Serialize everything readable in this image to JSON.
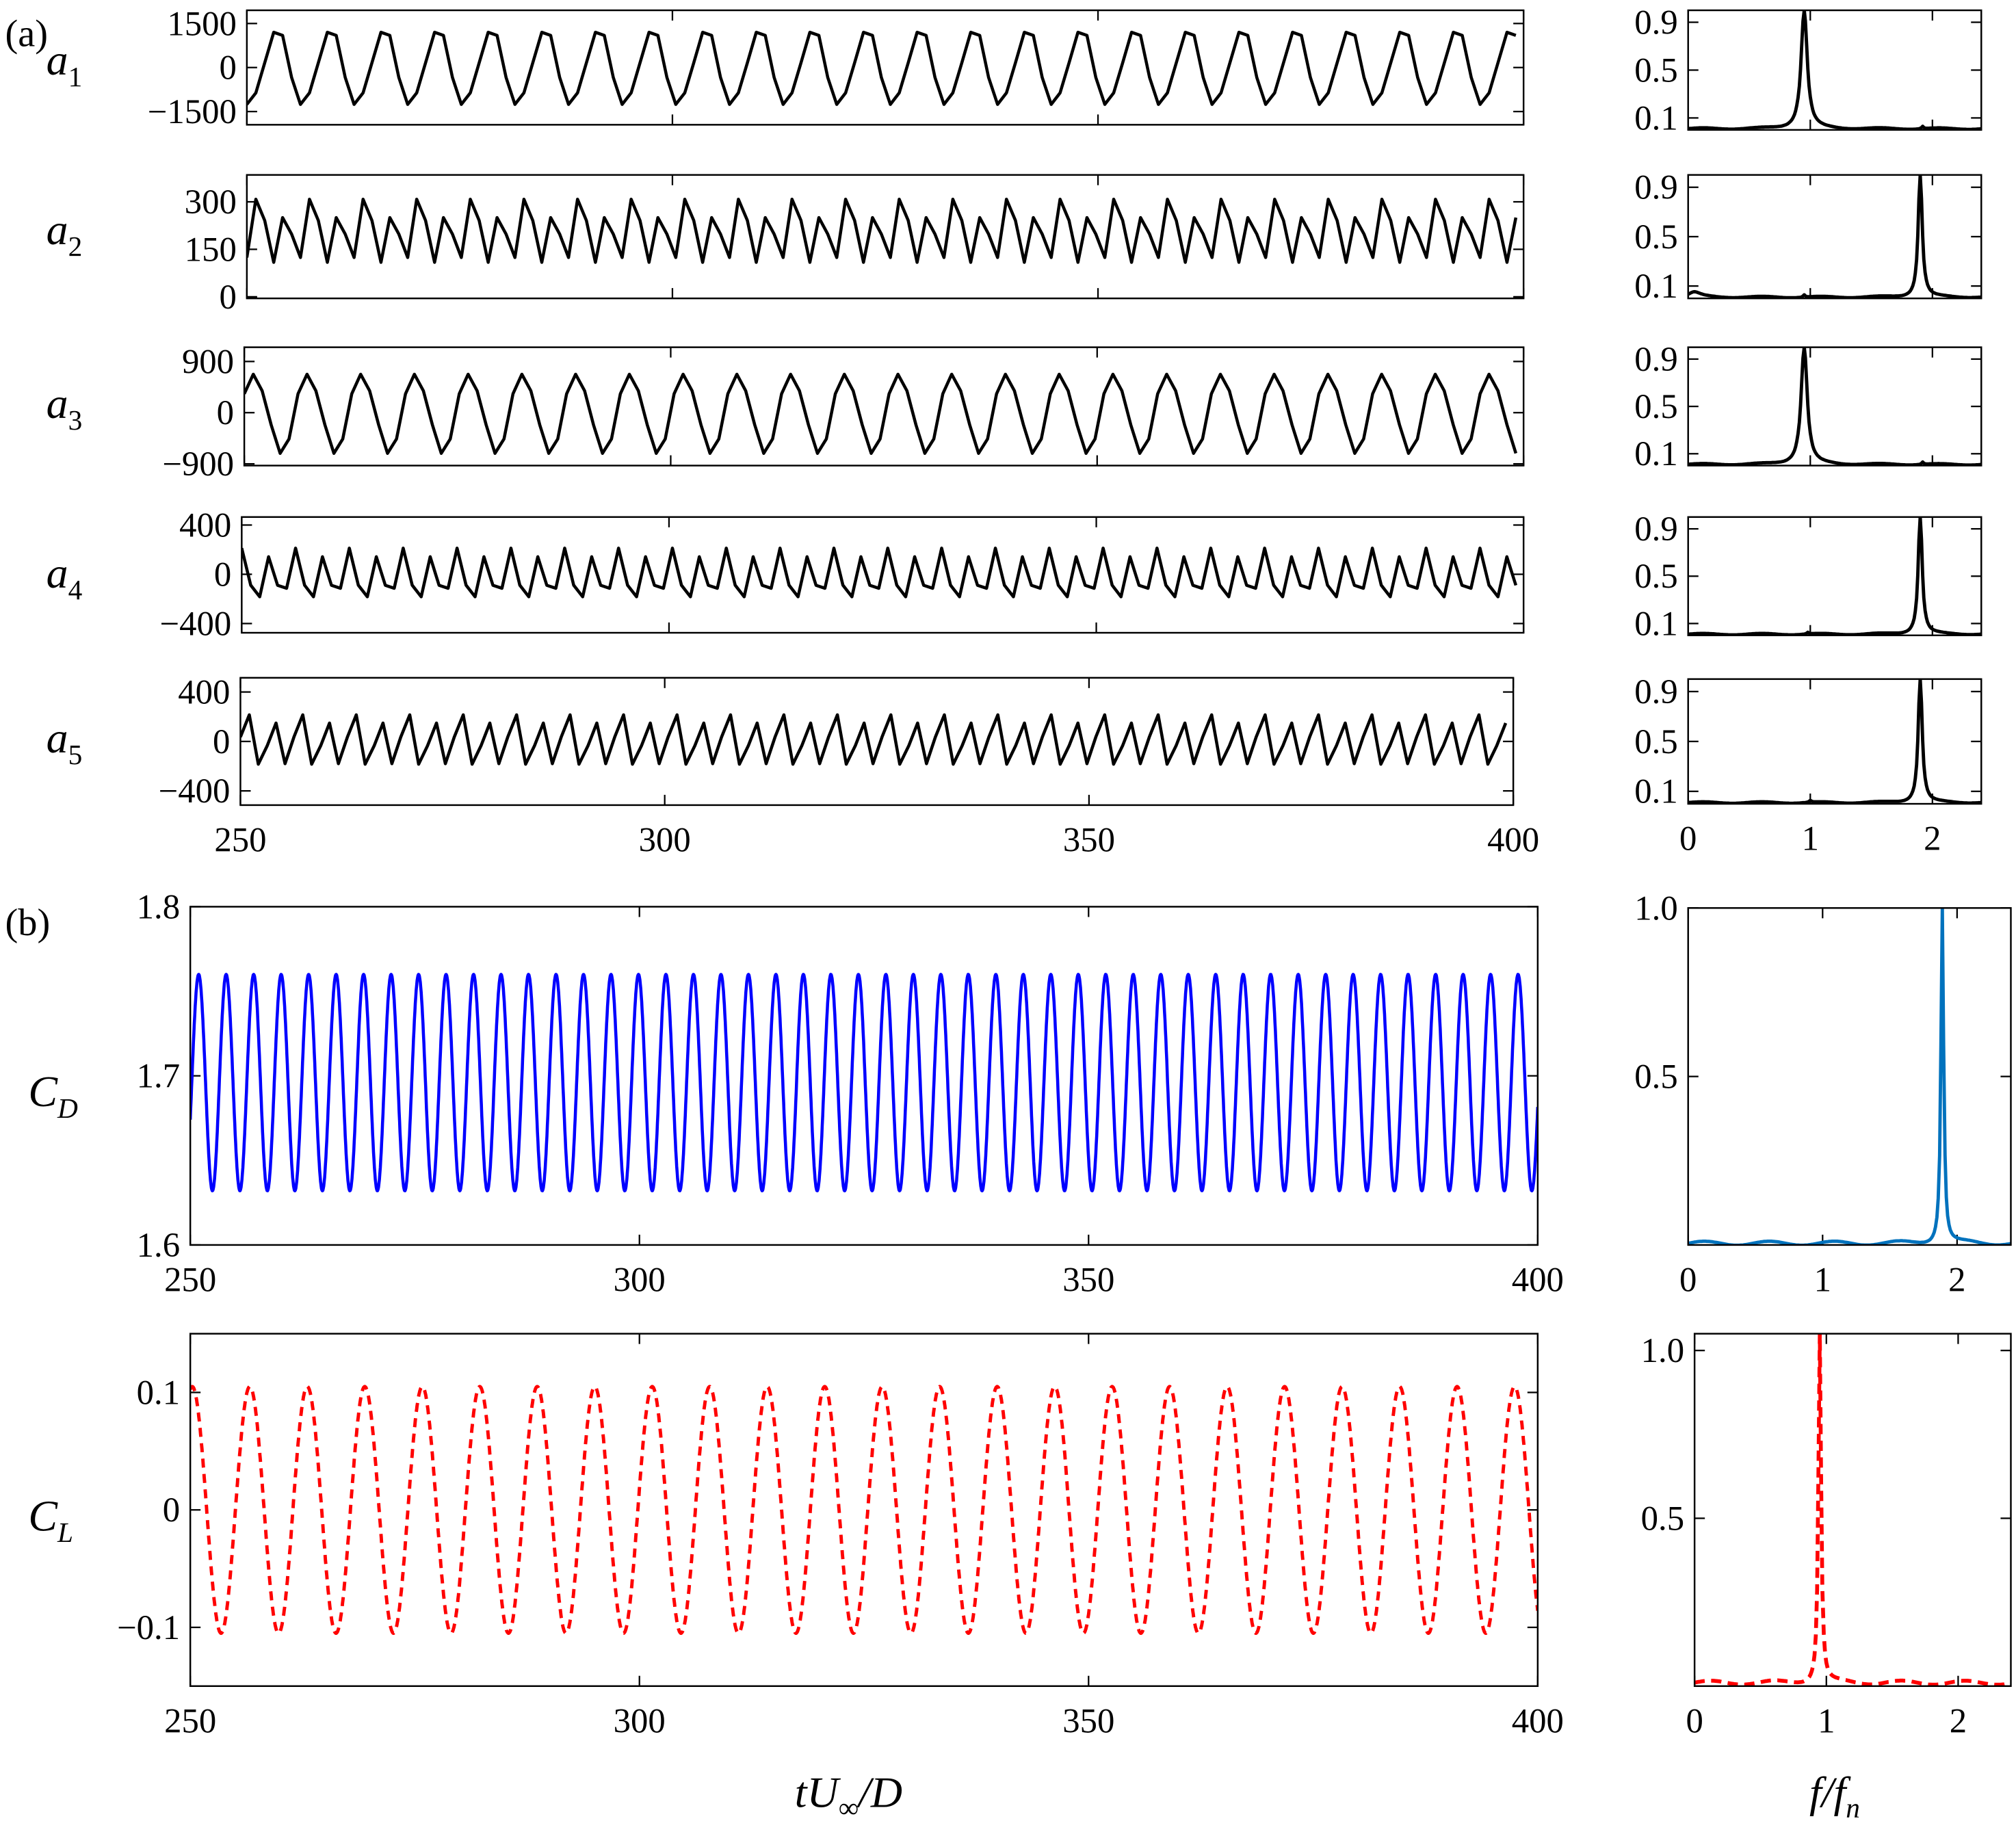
{
  "figure": {
    "panel_a_label": "(a)",
    "panel_b_label": "(b)",
    "time_xlabel": "tU∞/D",
    "freq_xlabel": "f/f_n",
    "colors": {
      "modes": "#000000",
      "cd_time": "#0000FF",
      "cd_psd": "#0072BD",
      "cl": "#FF0000",
      "axes": "#000000"
    }
  },
  "chart_data": [
    {
      "id": "a1",
      "type": "line",
      "ylabel": "a1",
      "ylabel_base": "a",
      "ylabel_sub": "1",
      "xlabel": "",
      "xlim": [
        250,
        400
      ],
      "xticks": [
        250,
        300,
        350,
        400
      ],
      "show_xticklabels": false,
      "ylim": [
        -1950,
        1950
      ],
      "yticks": [
        1500,
        0,
        -1500
      ],
      "yticklabels": [
        "1500",
        "0",
        "−1500"
      ],
      "signal": {
        "mean": 0,
        "amp1": 1300,
        "f_ratio1": 1.0,
        "amp2": 120,
        "f_ratio2": 2.0,
        "period": 6.3,
        "phase": -1.9,
        "sample_dt": 1.05
      },
      "color": "#000000",
      "dashed": false
    },
    {
      "id": "a2",
      "type": "line",
      "ylabel": "a2",
      "ylabel_base": "a",
      "ylabel_sub": "2",
      "xlabel": "",
      "xlim": [
        250,
        400
      ],
      "xticks": [
        250,
        300,
        350,
        400
      ],
      "show_xticklabels": false,
      "ylim": [
        -5,
        385
      ],
      "yticks": [
        300,
        150,
        0
      ],
      "yticklabels": [
        "300",
        "150",
        "0"
      ],
      "signal": {
        "mean": 205,
        "amp1": 95,
        "f_ratio1": 2.0,
        "amp2": 30,
        "f_ratio2": 1.0,
        "period": 6.3,
        "phase": -1.2,
        "sample_dt": 1.05
      },
      "color": "#000000",
      "dashed": false
    },
    {
      "id": "a3",
      "type": "line",
      "ylabel": "a3",
      "ylabel_base": "a",
      "ylabel_sub": "3",
      "xlabel": "",
      "xlim": [
        250,
        400
      ],
      "xticks": [
        250,
        300,
        350,
        400
      ],
      "show_xticklabels": false,
      "ylim": [
        -930,
        1150
      ],
      "yticks": [
        900,
        0,
        -900
      ],
      "yticklabels": [
        "900",
        "0",
        "−900"
      ],
      "signal": {
        "mean": 0,
        "amp1": 700,
        "f_ratio1": 1.0,
        "amp2": 60,
        "f_ratio2": 2.0,
        "period": 6.3,
        "phase": 0.4,
        "sample_dt": 1.05
      },
      "color": "#000000",
      "dashed": false
    },
    {
      "id": "a4",
      "type": "line",
      "ylabel": "a4",
      "ylabel_base": "a",
      "ylabel_sub": "4",
      "xlabel": "",
      "xlim": [
        250,
        400
      ],
      "xticks": [
        250,
        300,
        350,
        400
      ],
      "show_xticklabels": false,
      "ylim": [
        -475,
        465
      ],
      "yticks": [
        400,
        0,
        -400
      ],
      "yticklabels": [
        "400",
        "0",
        "−400"
      ],
      "signal": {
        "mean": -20,
        "amp1": 200,
        "f_ratio1": 2.0,
        "amp2": 40,
        "f_ratio2": 1.0,
        "period": 6.3,
        "phase": 1.4,
        "sample_dt": 1.05
      },
      "color": "#000000",
      "dashed": false
    },
    {
      "id": "a5",
      "type": "line",
      "ylabel": "a5",
      "ylabel_base": "a",
      "ylabel_sub": "5",
      "xlabel": "",
      "xlim": [
        250,
        400
      ],
      "xticks": [
        250,
        300,
        350,
        400
      ],
      "xticklabels": [
        "250",
        "300",
        "350",
        "400"
      ],
      "show_xticklabels": true,
      "ylim": [
        -515,
        515
      ],
      "yticks": [
        400,
        0,
        -400
      ],
      "yticklabels": [
        "400",
        "0",
        "−400"
      ],
      "signal": {
        "mean": 0,
        "amp1": 210,
        "f_ratio1": 2.0,
        "amp2": 40,
        "f_ratio2": 1.0,
        "period": 6.3,
        "phase": 0.0,
        "sample_dt": 1.05
      },
      "color": "#000000",
      "dashed": false
    },
    {
      "id": "psd_a1",
      "type": "line",
      "xlim": [
        0,
        2.4
      ],
      "xticks": [
        0,
        1,
        2
      ],
      "show_xticklabels": false,
      "ylim": [
        0.0,
        1.0
      ],
      "yticks": [
        0.9,
        0.5,
        0.1
      ],
      "yticklabels": [
        "0.9",
        "0.5",
        "0.1"
      ],
      "peaks": [
        {
          "f": 0.95,
          "height": 1.0,
          "width": 0.03
        },
        {
          "f": 1.92,
          "height": 0.02,
          "width": 0.01
        }
      ],
      "baseline": 0.01,
      "color": "#000000",
      "dashed": false
    },
    {
      "id": "psd_a2",
      "type": "line",
      "xlim": [
        0,
        2.4
      ],
      "xticks": [
        0,
        1,
        2
      ],
      "show_xticklabels": false,
      "ylim": [
        0.0,
        1.0
      ],
      "yticks": [
        0.9,
        0.5,
        0.1
      ],
      "yticklabels": [
        "0.9",
        "0.5",
        "0.1"
      ],
      "peaks": [
        {
          "f": 1.9,
          "height": 1.0,
          "width": 0.02
        },
        {
          "f": 0.95,
          "height": 0.02,
          "width": 0.01
        },
        {
          "f": 0.05,
          "height": 0.04,
          "width": 0.06
        }
      ],
      "baseline": 0.01,
      "color": "#000000",
      "dashed": false
    },
    {
      "id": "psd_a3",
      "type": "line",
      "xlim": [
        0,
        2.4
      ],
      "xticks": [
        0,
        1,
        2
      ],
      "show_xticklabels": false,
      "ylim": [
        0.0,
        1.0
      ],
      "yticks": [
        0.9,
        0.5,
        0.1
      ],
      "yticklabels": [
        "0.9",
        "0.5",
        "0.1"
      ],
      "peaks": [
        {
          "f": 0.95,
          "height": 1.0,
          "width": 0.03
        },
        {
          "f": 1.92,
          "height": 0.02,
          "width": 0.01
        }
      ],
      "baseline": 0.01,
      "color": "#000000",
      "dashed": false
    },
    {
      "id": "psd_a4",
      "type": "line",
      "xlim": [
        0,
        2.4
      ],
      "xticks": [
        0,
        1,
        2
      ],
      "show_xticklabels": false,
      "ylim": [
        0.0,
        1.0
      ],
      "yticks": [
        0.9,
        0.5,
        0.1
      ],
      "yticklabels": [
        "0.9",
        "0.5",
        "0.1"
      ],
      "peaks": [
        {
          "f": 1.9,
          "height": 1.0,
          "width": 0.02
        },
        {
          "f": 0.98,
          "height": 0.015,
          "width": 0.01
        }
      ],
      "baseline": 0.01,
      "color": "#000000",
      "dashed": false
    },
    {
      "id": "psd_a5",
      "type": "line",
      "xlim": [
        0,
        2.4
      ],
      "xticks": [
        0,
        1,
        2
      ],
      "xticklabels": [
        "0",
        "1",
        "2"
      ],
      "show_xticklabels": true,
      "ylim": [
        0.0,
        1.0
      ],
      "yticks": [
        0.9,
        0.5,
        0.1
      ],
      "yticklabels": [
        "0.9",
        "0.5",
        "0.1"
      ],
      "peaks": [
        {
          "f": 1.9,
          "height": 1.0,
          "width": 0.02
        },
        {
          "f": 1.0,
          "height": 0.015,
          "width": 0.01
        }
      ],
      "baseline": 0.01,
      "color": "#000000",
      "dashed": false
    },
    {
      "id": "cd",
      "type": "line",
      "ylabel": "CD",
      "ylabel_base": "C",
      "ylabel_sub": "D",
      "xlim": [
        250,
        400
      ],
      "xticks": [
        250,
        300,
        350,
        400
      ],
      "xticklabels": [
        "250",
        "300",
        "350",
        "400"
      ],
      "show_xticklabels": true,
      "ylim": [
        1.6,
        1.8
      ],
      "yticks": [
        1.8,
        1.7,
        1.6
      ],
      "yticklabels": [
        "1.8",
        "1.7",
        "1.6"
      ],
      "signal": {
        "mean": 1.696,
        "amp1": 0.064,
        "f_ratio1": 2.0,
        "amp2": 0,
        "f_ratio2": 1.0,
        "period": 6.12,
        "phase": -0.35,
        "sample_dt": 0.05
      },
      "color": "#0000FF",
      "dashed": false
    },
    {
      "id": "psd_cd",
      "type": "line",
      "xlim": [
        0,
        2.4
      ],
      "xticks": [
        0,
        1,
        2
      ],
      "xticklabels": [
        "0",
        "1",
        "2"
      ],
      "show_xticklabels": true,
      "ylim": [
        0.0,
        1.0
      ],
      "yticks": [
        1.0,
        0.5
      ],
      "yticklabels": [
        "1.0",
        "0.5"
      ],
      "peaks": [
        {
          "f": 1.89,
          "height": 1.0,
          "width": 0.012
        }
      ],
      "baseline": 0.005,
      "color": "#0072BD",
      "dashed": false
    },
    {
      "id": "cl",
      "type": "line",
      "ylabel": "CL",
      "ylabel_base": "C",
      "ylabel_sub": "L",
      "xlim": [
        250,
        400
      ],
      "xticks": [
        250,
        300,
        350,
        400
      ],
      "xticklabels": [
        "250",
        "300",
        "350",
        "400"
      ],
      "show_xticklabels": true,
      "ylim": [
        -0.15,
        0.15
      ],
      "yticks": [
        0.1,
        0,
        -0.1
      ],
      "yticklabels": [
        "0.1",
        "0",
        "−0.1"
      ],
      "signal": {
        "mean": 0,
        "amp1": 0.105,
        "f_ratio1": 1.0,
        "amp2": 0,
        "f_ratio2": 2.0,
        "period": 6.4,
        "phase": 1.35,
        "sample_dt": 0.05
      },
      "color": "#FF0000",
      "dashed": true
    },
    {
      "id": "psd_cl",
      "type": "line",
      "xlim": [
        0,
        2.4
      ],
      "xticks": [
        0,
        1,
        2
      ],
      "xticklabels": [
        "0",
        "1",
        "2"
      ],
      "show_xticklabels": true,
      "ylim": [
        0.0,
        1.05
      ],
      "yticks": [
        1.0,
        0.5
      ],
      "yticklabels": [
        "1.0",
        "0.5"
      ],
      "peaks": [
        {
          "f": 0.95,
          "height": 1.05,
          "width": 0.012
        }
      ],
      "baseline": 0.01,
      "color": "#FF0000",
      "dashed": true
    }
  ]
}
